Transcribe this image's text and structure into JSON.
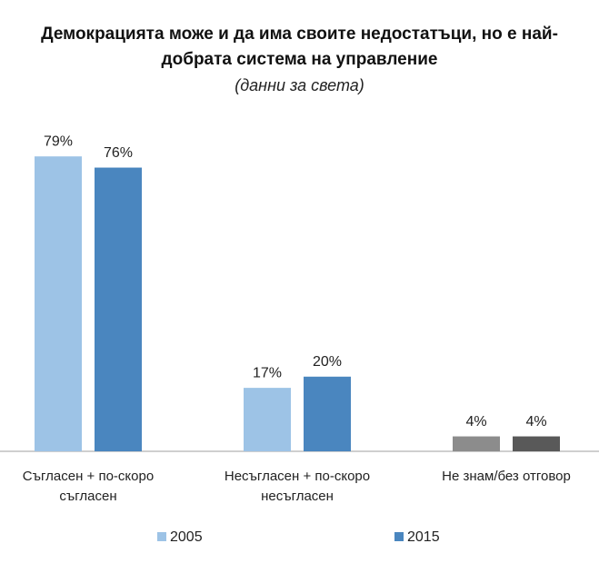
{
  "chart_data": {
    "type": "bar",
    "title": "Демокрацията може и да има своите недостатъци, но е най-добрата система на управление",
    "subtitle": "(данни за света)",
    "categories": [
      "Съгласен + по-скоро съгласен",
      "Несъгласен + по-скоро несъгласен",
      "Не знам/без отговор"
    ],
    "series": [
      {
        "name": "2005",
        "color": "#9dc3e6",
        "colors": [
          "#9dc3e6",
          "#9dc3e6",
          "#8c8c8c"
        ],
        "values": [
          79,
          17,
          4
        ],
        "value_labels": [
          "79%",
          "17%",
          "4%"
        ]
      },
      {
        "name": "2015",
        "color": "#4a86bf",
        "colors": [
          "#4a86bf",
          "#4a86bf",
          "#595959"
        ],
        "values": [
          76,
          20,
          4
        ],
        "value_labels": [
          "76%",
          "20%",
          "4%"
        ]
      }
    ],
    "ylim": [
      0,
      90
    ]
  }
}
